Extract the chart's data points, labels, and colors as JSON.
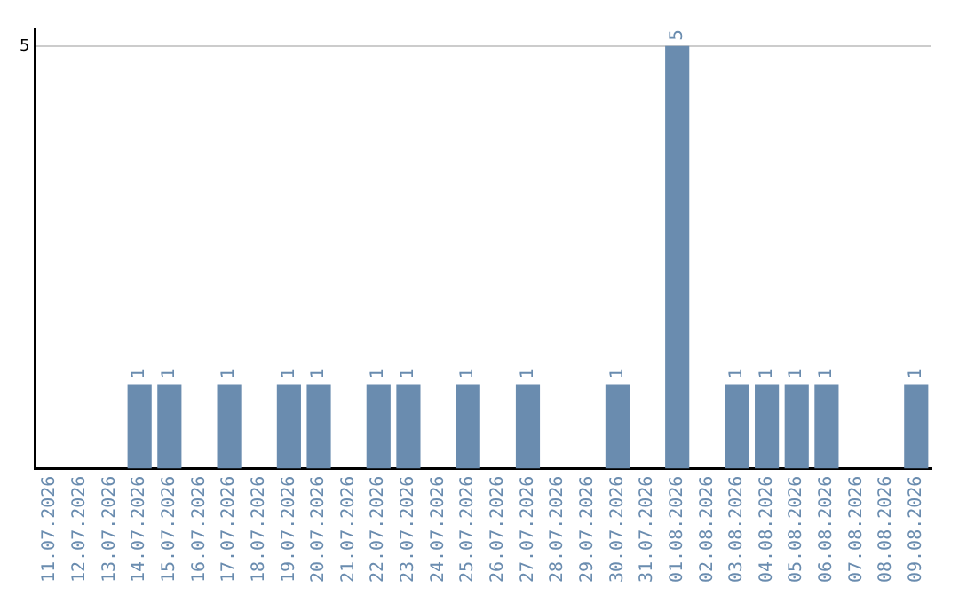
{
  "chart_data": {
    "type": "bar",
    "categories": [
      "11.07.2026",
      "12.07.2026",
      "13.07.2026",
      "14.07.2026",
      "15.07.2026",
      "16.07.2026",
      "17.07.2026",
      "18.07.2026",
      "19.07.2026",
      "20.07.2026",
      "21.07.2026",
      "22.07.2026",
      "23.07.2026",
      "24.07.2026",
      "25.07.2026",
      "26.07.2026",
      "27.07.2026",
      "28.07.2026",
      "29.07.2026",
      "30.07.2026",
      "31.07.2026",
      "01.08.2026",
      "02.08.2026",
      "03.08.2026",
      "04.08.2026",
      "05.08.2026",
      "06.08.2026",
      "07.08.2026",
      "08.08.2026",
      "09.08.2026"
    ],
    "values": [
      0,
      0,
      0,
      1,
      1,
      0,
      1,
      0,
      1,
      1,
      0,
      1,
      1,
      0,
      1,
      0,
      1,
      0,
      0,
      1,
      0,
      5,
      0,
      1,
      1,
      1,
      1,
      0,
      0,
      1
    ],
    "value_labels": [
      null,
      null,
      null,
      "1",
      "1",
      null,
      "1",
      null,
      "1",
      "1",
      null,
      "1",
      "1",
      null,
      "1",
      null,
      "1",
      null,
      null,
      "1",
      null,
      "5",
      null,
      "1",
      "1",
      "1",
      "1",
      null,
      null,
      "1"
    ],
    "color": "#6a8caf",
    "ylim": [
      0,
      5.2
    ],
    "yticks": [
      5
    ],
    "grid": "y",
    "legend": false
  }
}
